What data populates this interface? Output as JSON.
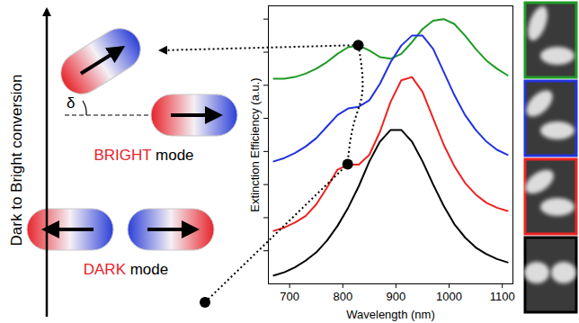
{
  "chart_data": {
    "type": "line",
    "xlabel": "Wavelength (nm)",
    "ylabel": "Extinction Efficiency (a.u.)",
    "x": [
      670,
      690,
      710,
      730,
      750,
      770,
      790,
      810,
      830,
      850,
      870,
      890,
      910,
      930,
      950,
      970,
      990,
      1010,
      1030,
      1050,
      1070,
      1090,
      1110
    ],
    "series": [
      {
        "color": "#1e9a25",
        "values": [
          6.2,
          6.2,
          6.25,
          6.35,
          6.5,
          6.7,
          6.95,
          7.15,
          7.2,
          7.05,
          6.85,
          6.8,
          6.95,
          7.3,
          7.7,
          7.95,
          8.0,
          7.85,
          7.5,
          7.1,
          6.75,
          6.5,
          6.3
        ]
      },
      {
        "color": "#2233dd",
        "values": [
          3.7,
          3.8,
          3.95,
          4.15,
          4.4,
          4.75,
          5.1,
          5.3,
          5.35,
          5.55,
          6.05,
          6.7,
          7.2,
          7.5,
          7.5,
          7.1,
          6.4,
          5.7,
          5.1,
          4.65,
          4.3,
          4.05,
          3.9
        ]
      },
      {
        "color": "#ee2222",
        "values": [
          1.6,
          1.7,
          1.85,
          2.05,
          2.4,
          2.9,
          3.45,
          3.6,
          3.6,
          3.9,
          4.6,
          5.5,
          6.15,
          6.25,
          5.8,
          5.0,
          4.2,
          3.55,
          3.05,
          2.7,
          2.45,
          2.3,
          2.2
        ]
      },
      {
        "color": "#000000",
        "values": [
          0.25,
          0.35,
          0.5,
          0.7,
          0.95,
          1.3,
          1.75,
          2.3,
          2.95,
          3.7,
          4.3,
          4.65,
          4.65,
          4.3,
          3.7,
          3.0,
          2.35,
          1.8,
          1.4,
          1.1,
          0.9,
          0.75,
          0.65
        ]
      }
    ],
    "xlim": [
      660,
      1120
    ],
    "xticks": [
      700,
      800,
      900,
      1000,
      1100
    ],
    "ylim": [
      0,
      8.4
    ],
    "yticks": [
      1,
      2,
      3,
      4,
      5,
      6,
      7,
      8
    ],
    "tick_labels": "x",
    "grid": false
  },
  "diagram": {
    "vertical_label": "Dark to Bright conversion",
    "angle_label": "δ",
    "bright_label": "BRIGHT mode",
    "dark_label": "DARK mode"
  }
}
